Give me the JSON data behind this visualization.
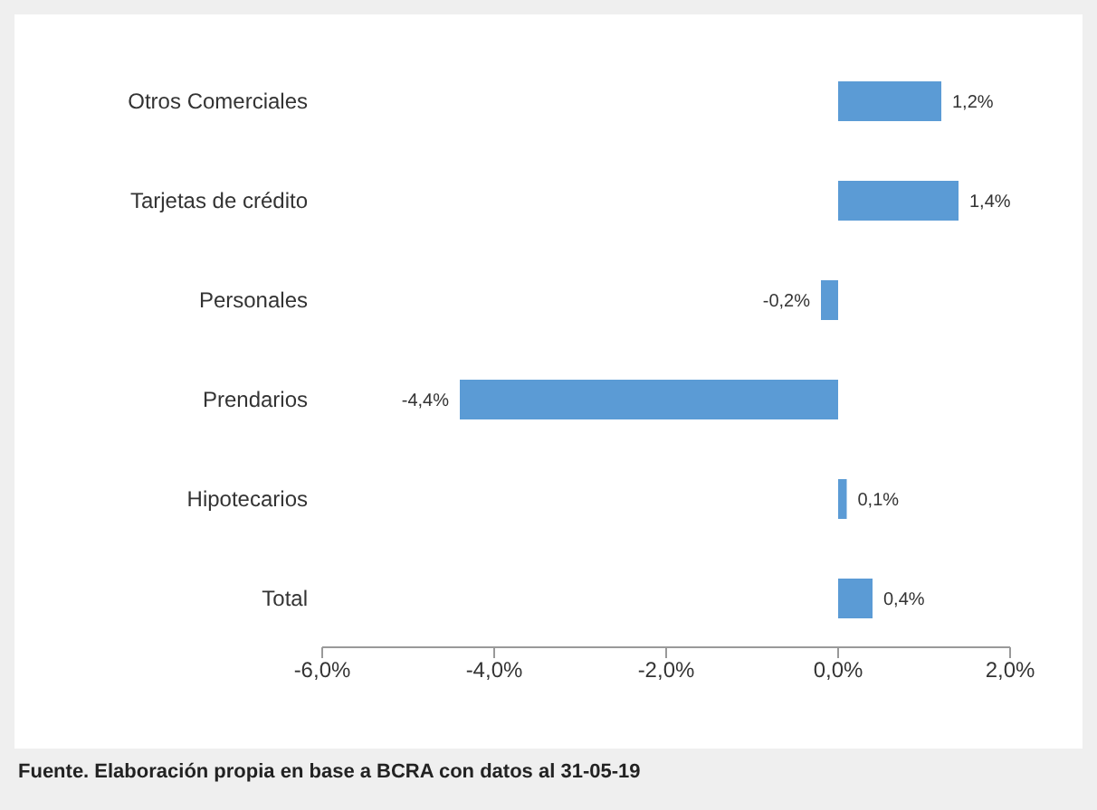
{
  "chart_data": {
    "type": "bar",
    "orientation": "horizontal",
    "categories": [
      "Otros Comerciales",
      "Tarjetas de crédito",
      "Personales",
      "Prendarios",
      "Hipotecarios",
      "Total"
    ],
    "values": [
      1.2,
      1.4,
      -0.2,
      -4.4,
      0.1,
      0.4
    ],
    "value_labels": [
      "1,2%",
      "1,4%",
      "-0,2%",
      "-4,4%",
      "0,1%",
      "0,4%"
    ],
    "color": "#5b9bd5",
    "xlim": [
      -6,
      2
    ],
    "xticks": [
      {
        "value": -6,
        "label": "-6,0%"
      },
      {
        "value": -4,
        "label": "-4,0%"
      },
      {
        "value": -2,
        "label": "-2,0%"
      },
      {
        "value": 0,
        "label": "0,0%"
      },
      {
        "value": 2,
        "label": "2,0%"
      }
    ],
    "grid": false,
    "legend": false,
    "annotations": [
      "Fuente. Elaboración propia en base a BCRA con datos al 31-05-19"
    ]
  }
}
